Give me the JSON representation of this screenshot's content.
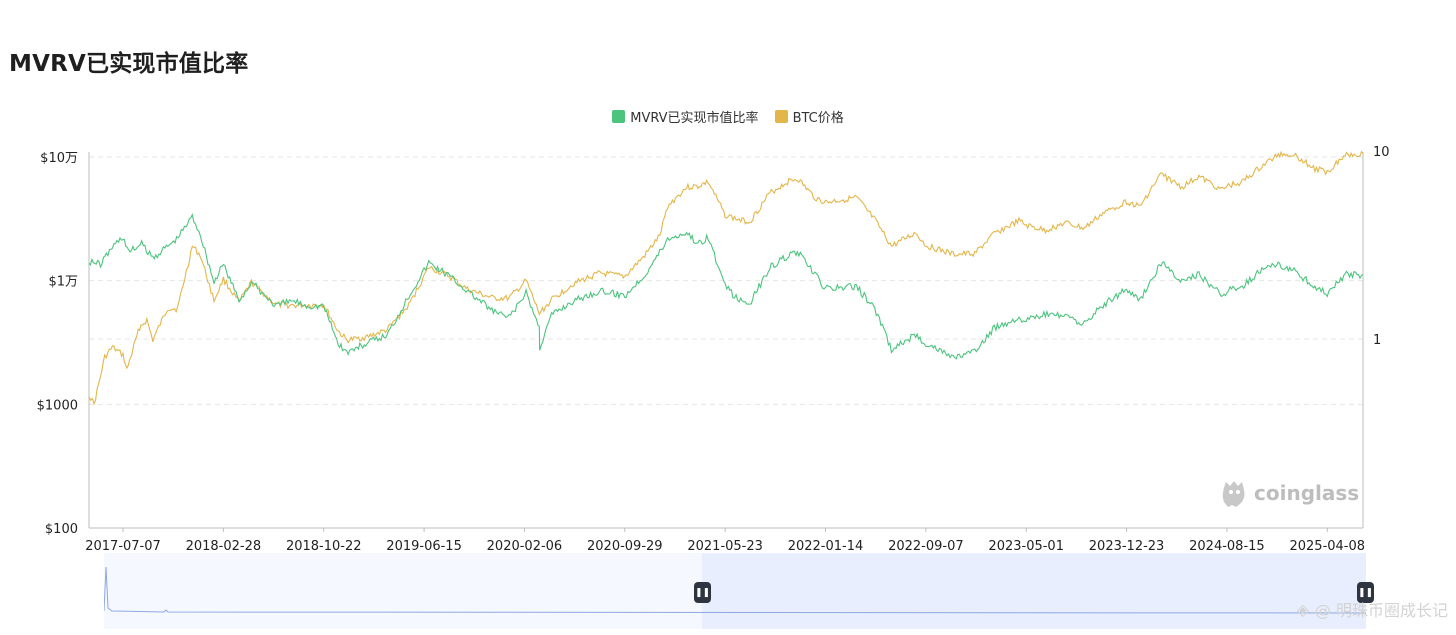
{
  "page": {
    "title": "MVRV已实现市值比率"
  },
  "legend": {
    "items": [
      {
        "label": "MVRV已实现市值比率",
        "color": "#4cc47e"
      },
      {
        "label": "BTC价格",
        "color": "#e3b64a"
      }
    ]
  },
  "watermark": {
    "text": "coinglass"
  },
  "footer": {
    "text": "@ 明珠币圈成长记"
  },
  "colors": {
    "mvrv": "#4cc47e",
    "price": "#e3b64a",
    "grid": "#e6e6e6",
    "axis": "#bdbdbd",
    "navFill": "#e9eeff",
    "navLine": "#8fa8e0"
  },
  "chart_data": {
    "type": "line",
    "title": "MVRV已实现市值比率",
    "x_tick_labels": [
      "2017-07-07",
      "2018-02-28",
      "2018-10-22",
      "2019-06-15",
      "2020-02-06",
      "2020-09-29",
      "2021-05-23",
      "2022-01-14",
      "2022-09-07",
      "2023-05-01",
      "2023-12-23",
      "2024-08-15",
      "2025-04-08"
    ],
    "x_range": [
      "2017-04-18",
      "2025-07-01"
    ],
    "y_left": {
      "scale": "log",
      "range": [
        100,
        100000
      ],
      "tick_labels": [
        "$100",
        "$1000",
        "$1万",
        "$10万"
      ],
      "tick_values": [
        100,
        1000,
        10000,
        100000
      ]
    },
    "y_right": {
      "scale": "log",
      "tick_labels": [
        "1",
        "10"
      ],
      "tick_values": [
        1,
        10
      ]
    },
    "grid": true,
    "legend_position": "top-center",
    "series": [
      {
        "name": "MVRV已实现市值比率",
        "axis": "right",
        "points": [
          [
            "2017-04-18",
            2.6
          ],
          [
            "2017-05-15",
            2.5
          ],
          [
            "2017-06-12",
            3.1
          ],
          [
            "2017-07-07",
            3.5
          ],
          [
            "2017-07-20",
            2.9
          ],
          [
            "2017-08-20",
            3.2
          ],
          [
            "2017-09-15",
            2.7
          ],
          [
            "2017-10-10",
            3.0
          ],
          [
            "2017-11-10",
            3.4
          ],
          [
            "2017-12-17",
            4.5
          ],
          [
            "2018-01-05",
            3.6
          ],
          [
            "2018-02-06",
            2.0
          ],
          [
            "2018-02-28",
            2.5
          ],
          [
            "2018-04-06",
            1.6
          ],
          [
            "2018-05-05",
            2.0
          ],
          [
            "2018-07-01",
            1.5
          ],
          [
            "2018-08-10",
            1.6
          ],
          [
            "2018-09-15",
            1.5
          ],
          [
            "2018-10-22",
            1.5
          ],
          [
            "2018-11-25",
            0.95
          ],
          [
            "2018-12-15",
            0.85
          ],
          [
            "2019-02-01",
            0.95
          ],
          [
            "2019-03-20",
            1.05
          ],
          [
            "2019-05-10",
            1.7
          ],
          [
            "2019-06-26",
            2.55
          ],
          [
            "2019-08-10",
            2.2
          ],
          [
            "2019-09-25",
            1.8
          ],
          [
            "2019-11-25",
            1.4
          ],
          [
            "2020-01-01",
            1.3
          ],
          [
            "2020-02-10",
            1.75
          ],
          [
            "2020-03-12",
            1.15
          ],
          [
            "2020-03-13",
            0.9
          ],
          [
            "2020-04-10",
            1.35
          ],
          [
            "2020-06-01",
            1.6
          ],
          [
            "2020-08-01",
            1.8
          ],
          [
            "2020-09-29",
            1.7
          ],
          [
            "2020-11-15",
            2.2
          ],
          [
            "2020-12-20",
            2.9
          ],
          [
            "2021-01-08",
            3.4
          ],
          [
            "2021-02-21",
            3.7
          ],
          [
            "2021-03-20",
            3.2
          ],
          [
            "2021-04-13",
            3.5
          ],
          [
            "2021-05-23",
            1.9
          ],
          [
            "2021-06-25",
            1.6
          ],
          [
            "2021-07-20",
            1.55
          ],
          [
            "2021-09-05",
            2.4
          ],
          [
            "2021-10-20",
            2.8
          ],
          [
            "2021-11-09",
            2.9
          ],
          [
            "2021-12-20",
            2.2
          ],
          [
            "2022-01-14",
            1.85
          ],
          [
            "2022-03-28",
            1.9
          ],
          [
            "2022-05-10",
            1.45
          ],
          [
            "2022-06-18",
            0.88
          ],
          [
            "2022-08-14",
            1.05
          ],
          [
            "2022-09-07",
            0.95
          ],
          [
            "2022-11-10",
            0.8
          ],
          [
            "2022-12-31",
            0.85
          ],
          [
            "2023-02-15",
            1.15
          ],
          [
            "2023-04-14",
            1.3
          ],
          [
            "2023-05-01",
            1.25
          ],
          [
            "2023-06-15",
            1.35
          ],
          [
            "2023-08-01",
            1.32
          ],
          [
            "2023-09-15",
            1.2
          ],
          [
            "2023-10-25",
            1.5
          ],
          [
            "2023-12-23",
            1.85
          ],
          [
            "2024-01-23",
            1.6
          ],
          [
            "2024-03-13",
            2.55
          ],
          [
            "2024-05-01",
            2.0
          ],
          [
            "2024-06-10",
            2.2
          ],
          [
            "2024-08-05",
            1.7
          ],
          [
            "2024-08-15",
            1.8
          ],
          [
            "2024-09-20",
            1.9
          ],
          [
            "2024-11-12",
            2.4
          ],
          [
            "2024-12-17",
            2.5
          ],
          [
            "2025-01-20",
            2.3
          ],
          [
            "2025-03-10",
            1.9
          ],
          [
            "2025-04-08",
            1.75
          ],
          [
            "2025-05-20",
            2.2
          ],
          [
            "2025-07-01",
            2.2
          ]
        ]
      },
      {
        "name": "BTC价格",
        "axis": "left",
        "points": [
          [
            "2017-04-18",
            1200
          ],
          [
            "2017-04-30",
            1000
          ],
          [
            "2017-05-25",
            2400
          ],
          [
            "2017-06-12",
            2900
          ],
          [
            "2017-07-07",
            2500
          ],
          [
            "2017-07-16",
            1900
          ],
          [
            "2017-08-15",
            4200
          ],
          [
            "2017-09-01",
            4800
          ],
          [
            "2017-09-15",
            3300
          ],
          [
            "2017-10-20",
            6000
          ],
          [
            "2017-11-12",
            5900
          ],
          [
            "2017-12-17",
            19000
          ],
          [
            "2018-01-05",
            16000
          ],
          [
            "2018-02-06",
            6900
          ],
          [
            "2018-02-28",
            10300
          ],
          [
            "2018-04-06",
            6700
          ],
          [
            "2018-05-05",
            9700
          ],
          [
            "2018-07-01",
            6400
          ],
          [
            "2018-08-10",
            6300
          ],
          [
            "2018-10-22",
            6400
          ],
          [
            "2018-11-25",
            3900
          ],
          [
            "2018-12-15",
            3300
          ],
          [
            "2019-02-01",
            3500
          ],
          [
            "2019-03-20",
            4000
          ],
          [
            "2019-05-10",
            6300
          ],
          [
            "2019-06-26",
            12800
          ],
          [
            "2019-08-10",
            11000
          ],
          [
            "2019-09-25",
            8500
          ],
          [
            "2019-11-25",
            7200
          ],
          [
            "2020-01-01",
            7200
          ],
          [
            "2020-02-10",
            10000
          ],
          [
            "2020-03-12",
            5400
          ],
          [
            "2020-04-10",
            7000
          ],
          [
            "2020-06-01",
            9500
          ],
          [
            "2020-08-01",
            11500
          ],
          [
            "2020-09-29",
            10800
          ],
          [
            "2020-11-15",
            16000
          ],
          [
            "2020-12-20",
            23000
          ],
          [
            "2021-01-08",
            40000
          ],
          [
            "2021-02-21",
            57000
          ],
          [
            "2021-03-20",
            58000
          ],
          [
            "2021-04-13",
            63000
          ],
          [
            "2021-05-23",
            34000
          ],
          [
            "2021-06-25",
            31000
          ],
          [
            "2021-07-20",
            30000
          ],
          [
            "2021-09-05",
            51000
          ],
          [
            "2021-10-20",
            64000
          ],
          [
            "2021-11-09",
            67000
          ],
          [
            "2021-12-20",
            47000
          ],
          [
            "2022-01-14",
            43000
          ],
          [
            "2022-03-28",
            47000
          ],
          [
            "2022-05-10",
            31000
          ],
          [
            "2022-06-18",
            19000
          ],
          [
            "2022-08-14",
            24400
          ],
          [
            "2022-09-07",
            19300
          ],
          [
            "2022-11-10",
            16300
          ],
          [
            "2022-12-31",
            16600
          ],
          [
            "2023-02-15",
            24000
          ],
          [
            "2023-04-14",
            30500
          ],
          [
            "2023-05-01",
            28000
          ],
          [
            "2023-06-15",
            25500
          ],
          [
            "2023-08-01",
            29300
          ],
          [
            "2023-09-15",
            26500
          ],
          [
            "2023-10-25",
            34500
          ],
          [
            "2023-12-23",
            43700
          ],
          [
            "2024-01-23",
            39500
          ],
          [
            "2024-03-13",
            73000
          ],
          [
            "2024-05-01",
            57000
          ],
          [
            "2024-06-10",
            69500
          ],
          [
            "2024-08-05",
            54000
          ],
          [
            "2024-08-15",
            58000
          ],
          [
            "2024-09-20",
            63000
          ],
          [
            "2024-11-12",
            88000
          ],
          [
            "2024-12-17",
            106000
          ],
          [
            "2025-01-20",
            105000
          ],
          [
            "2025-03-10",
            80000
          ],
          [
            "2025-04-08",
            76000
          ],
          [
            "2025-05-20",
            105000
          ],
          [
            "2025-07-01",
            107000
          ]
        ]
      }
    ]
  }
}
